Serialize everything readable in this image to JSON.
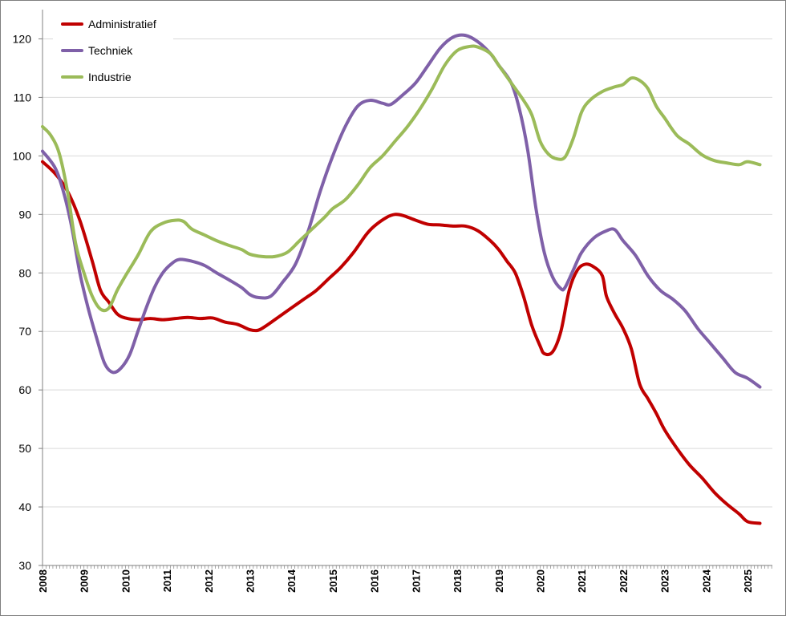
{
  "chart_data": {
    "type": "line",
    "title": "",
    "xlabel": "",
    "ylabel": "",
    "xlim": [
      2008.0,
      2025.6
    ],
    "ylim": [
      30,
      125
    ],
    "y_ticks": [
      30,
      40,
      50,
      60,
      70,
      80,
      90,
      100,
      110,
      120
    ],
    "x_tick_labels": [
      "2008",
      "2009",
      "2010",
      "2011",
      "2012",
      "2013",
      "2014",
      "2015",
      "2016",
      "2017",
      "2018",
      "2019",
      "2020",
      "2021",
      "2022",
      "2023",
      "2024",
      "2025"
    ],
    "grid": "horizontal",
    "legend_position": "top-left",
    "series": [
      {
        "name": "Administratief",
        "color": "#c00000",
        "points": [
          [
            2008.0,
            99
          ],
          [
            2008.3,
            97
          ],
          [
            2008.6,
            94
          ],
          [
            2008.9,
            89
          ],
          [
            2009.2,
            82
          ],
          [
            2009.4,
            77
          ],
          [
            2009.6,
            75
          ],
          [
            2009.8,
            73
          ],
          [
            2010.0,
            72.3
          ],
          [
            2010.3,
            72
          ],
          [
            2010.6,
            72.2
          ],
          [
            2010.9,
            72
          ],
          [
            2011.2,
            72.2
          ],
          [
            2011.5,
            72.4
          ],
          [
            2011.8,
            72.2
          ],
          [
            2012.1,
            72.3
          ],
          [
            2012.4,
            71.6
          ],
          [
            2012.7,
            71.2
          ],
          [
            2013.0,
            70.3
          ],
          [
            2013.2,
            70.2
          ],
          [
            2013.4,
            71
          ],
          [
            2013.7,
            72.5
          ],
          [
            2014.0,
            74
          ],
          [
            2014.3,
            75.5
          ],
          [
            2014.6,
            77
          ],
          [
            2014.9,
            79
          ],
          [
            2015.2,
            81
          ],
          [
            2015.5,
            83.5
          ],
          [
            2015.8,
            86.5
          ],
          [
            2016.0,
            88
          ],
          [
            2016.3,
            89.5
          ],
          [
            2016.5,
            90
          ],
          [
            2016.7,
            89.8
          ],
          [
            2017.0,
            89
          ],
          [
            2017.3,
            88.3
          ],
          [
            2017.6,
            88.2
          ],
          [
            2017.9,
            88
          ],
          [
            2018.2,
            88
          ],
          [
            2018.5,
            87.2
          ],
          [
            2018.8,
            85.5
          ],
          [
            2019.0,
            84
          ],
          [
            2019.2,
            82
          ],
          [
            2019.4,
            80
          ],
          [
            2019.6,
            76
          ],
          [
            2019.8,
            71
          ],
          [
            2020.0,
            67.5
          ],
          [
            2020.1,
            66.2
          ],
          [
            2020.3,
            66.5
          ],
          [
            2020.5,
            70
          ],
          [
            2020.7,
            77
          ],
          [
            2020.9,
            80.5
          ],
          [
            2021.1,
            81.5
          ],
          [
            2021.3,
            81
          ],
          [
            2021.5,
            79.5
          ],
          [
            2021.6,
            76
          ],
          [
            2021.8,
            73
          ],
          [
            2022.0,
            70.5
          ],
          [
            2022.2,
            67
          ],
          [
            2022.4,
            61
          ],
          [
            2022.6,
            58.5
          ],
          [
            2022.8,
            56
          ],
          [
            2023.0,
            53.2
          ],
          [
            2023.3,
            50
          ],
          [
            2023.6,
            47.2
          ],
          [
            2023.9,
            45
          ],
          [
            2024.2,
            42.5
          ],
          [
            2024.5,
            40.5
          ],
          [
            2024.8,
            38.8
          ],
          [
            2025.0,
            37.5
          ],
          [
            2025.3,
            37.2
          ]
        ]
      },
      {
        "name": "Techniek",
        "color": "#7f60a8",
        "points": [
          [
            2008.0,
            100.8
          ],
          [
            2008.3,
            98
          ],
          [
            2008.5,
            94
          ],
          [
            2008.7,
            88
          ],
          [
            2008.9,
            80
          ],
          [
            2009.1,
            74
          ],
          [
            2009.3,
            69
          ],
          [
            2009.5,
            64.5
          ],
          [
            2009.7,
            63
          ],
          [
            2009.9,
            63.8
          ],
          [
            2010.1,
            66
          ],
          [
            2010.3,
            70
          ],
          [
            2010.5,
            74
          ],
          [
            2010.7,
            77.5
          ],
          [
            2010.9,
            80
          ],
          [
            2011.1,
            81.5
          ],
          [
            2011.3,
            82.3
          ],
          [
            2011.6,
            82
          ],
          [
            2011.9,
            81.3
          ],
          [
            2012.2,
            80
          ],
          [
            2012.5,
            78.8
          ],
          [
            2012.8,
            77.5
          ],
          [
            2013.0,
            76.3
          ],
          [
            2013.2,
            75.8
          ],
          [
            2013.5,
            76
          ],
          [
            2013.8,
            78.5
          ],
          [
            2014.1,
            81.5
          ],
          [
            2014.4,
            87
          ],
          [
            2014.7,
            94
          ],
          [
            2015.0,
            100
          ],
          [
            2015.3,
            105
          ],
          [
            2015.6,
            108.5
          ],
          [
            2015.9,
            109.5
          ],
          [
            2016.2,
            109
          ],
          [
            2016.4,
            108.8
          ],
          [
            2016.7,
            110.5
          ],
          [
            2017.0,
            112.5
          ],
          [
            2017.3,
            115.5
          ],
          [
            2017.6,
            118.5
          ],
          [
            2017.9,
            120.3
          ],
          [
            2018.2,
            120.6
          ],
          [
            2018.5,
            119.5
          ],
          [
            2018.8,
            117.5
          ],
          [
            2019.0,
            115.5
          ],
          [
            2019.3,
            112.5
          ],
          [
            2019.5,
            108
          ],
          [
            2019.7,
            101
          ],
          [
            2019.9,
            91
          ],
          [
            2020.1,
            83.5
          ],
          [
            2020.3,
            79.3
          ],
          [
            2020.5,
            77.3
          ],
          [
            2020.6,
            77.5
          ],
          [
            2020.8,
            80.5
          ],
          [
            2021.0,
            83.5
          ],
          [
            2021.3,
            86
          ],
          [
            2021.6,
            87.2
          ],
          [
            2021.8,
            87.4
          ],
          [
            2022.0,
            85.5
          ],
          [
            2022.3,
            83
          ],
          [
            2022.6,
            79.5
          ],
          [
            2022.9,
            77
          ],
          [
            2023.2,
            75.5
          ],
          [
            2023.5,
            73.5
          ],
          [
            2023.8,
            70.5
          ],
          [
            2024.1,
            68
          ],
          [
            2024.4,
            65.5
          ],
          [
            2024.7,
            63
          ],
          [
            2025.0,
            62
          ],
          [
            2025.3,
            60.5
          ]
        ]
      },
      {
        "name": "Industrie",
        "color": "#9bbb59",
        "points": [
          [
            2008.0,
            105
          ],
          [
            2008.2,
            103.5
          ],
          [
            2008.4,
            100.5
          ],
          [
            2008.6,
            94
          ],
          [
            2008.8,
            85
          ],
          [
            2009.0,
            80
          ],
          [
            2009.2,
            76
          ],
          [
            2009.4,
            73.8
          ],
          [
            2009.6,
            74
          ],
          [
            2009.8,
            77
          ],
          [
            2010.0,
            79.5
          ],
          [
            2010.3,
            83
          ],
          [
            2010.6,
            87
          ],
          [
            2010.9,
            88.5
          ],
          [
            2011.2,
            89
          ],
          [
            2011.4,
            88.8
          ],
          [
            2011.6,
            87.5
          ],
          [
            2011.9,
            86.5
          ],
          [
            2012.2,
            85.5
          ],
          [
            2012.5,
            84.7
          ],
          [
            2012.8,
            84
          ],
          [
            2013.0,
            83.2
          ],
          [
            2013.3,
            82.8
          ],
          [
            2013.6,
            82.8
          ],
          [
            2013.9,
            83.5
          ],
          [
            2014.2,
            85.5
          ],
          [
            2014.5,
            87.5
          ],
          [
            2014.8,
            89.5
          ],
          [
            2015.0,
            91
          ],
          [
            2015.3,
            92.5
          ],
          [
            2015.6,
            95
          ],
          [
            2015.9,
            98
          ],
          [
            2016.2,
            100
          ],
          [
            2016.5,
            102.5
          ],
          [
            2016.8,
            105
          ],
          [
            2017.1,
            108
          ],
          [
            2017.4,
            111.5
          ],
          [
            2017.7,
            115.5
          ],
          [
            2018.0,
            118
          ],
          [
            2018.3,
            118.7
          ],
          [
            2018.5,
            118.6
          ],
          [
            2018.8,
            117.5
          ],
          [
            2019.0,
            115.5
          ],
          [
            2019.3,
            112.5
          ],
          [
            2019.6,
            109.5
          ],
          [
            2019.8,
            107
          ],
          [
            2020.0,
            102.5
          ],
          [
            2020.2,
            100.3
          ],
          [
            2020.4,
            99.5
          ],
          [
            2020.6,
            99.8
          ],
          [
            2020.8,
            103
          ],
          [
            2021.0,
            107.5
          ],
          [
            2021.2,
            109.5
          ],
          [
            2021.5,
            111
          ],
          [
            2021.8,
            111.8
          ],
          [
            2022.0,
            112.2
          ],
          [
            2022.2,
            113.3
          ],
          [
            2022.4,
            112.9
          ],
          [
            2022.6,
            111.5
          ],
          [
            2022.8,
            108.5
          ],
          [
            2023.0,
            106.5
          ],
          [
            2023.3,
            103.5
          ],
          [
            2023.6,
            102
          ],
          [
            2023.9,
            100.2
          ],
          [
            2024.2,
            99.2
          ],
          [
            2024.5,
            98.8
          ],
          [
            2024.8,
            98.5
          ],
          [
            2025.0,
            99
          ],
          [
            2025.3,
            98.5
          ]
        ]
      }
    ]
  }
}
